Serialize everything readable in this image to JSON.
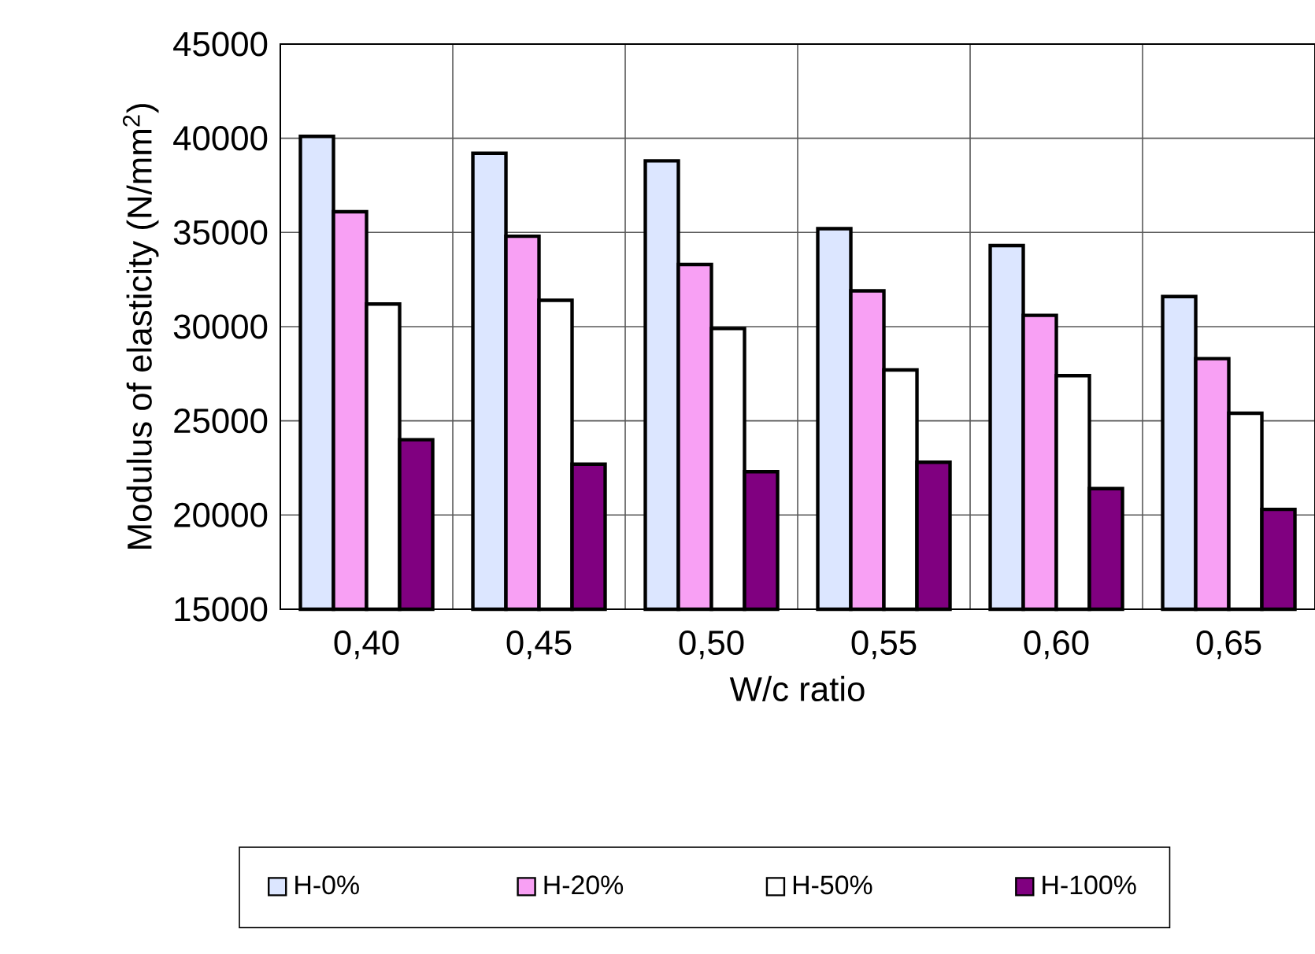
{
  "chart_data": {
    "type": "bar",
    "xlabel": "W/c ratio",
    "ylabel": "Modulus of elasticity (N/mm$^{2}$)",
    "categories": [
      "0,40",
      "0,45",
      "0,50",
      "0,55",
      "0,60",
      "0,65"
    ],
    "series": [
      {
        "name": "H-0%",
        "color": "#dce6ff",
        "values": [
          40100,
          39200,
          38800,
          35200,
          34300,
          31600
        ]
      },
      {
        "name": "H-20%",
        "color": "#f8a0f4",
        "values": [
          36100,
          34800,
          33300,
          31900,
          30600,
          28300
        ]
      },
      {
        "name": "H-50%",
        "color": "#ffffff",
        "values": [
          31200,
          31400,
          29900,
          27700,
          27400,
          25400
        ]
      },
      {
        "name": "H-100%",
        "color": "#800080",
        "values": [
          24000,
          22700,
          22300,
          22800,
          21400,
          20300
        ]
      }
    ],
    "ylim": [
      15000,
      45000
    ],
    "yticks": [
      15000,
      20000,
      25000,
      30000,
      35000,
      40000,
      45000
    ],
    "grid": true,
    "legend": "bottom"
  }
}
